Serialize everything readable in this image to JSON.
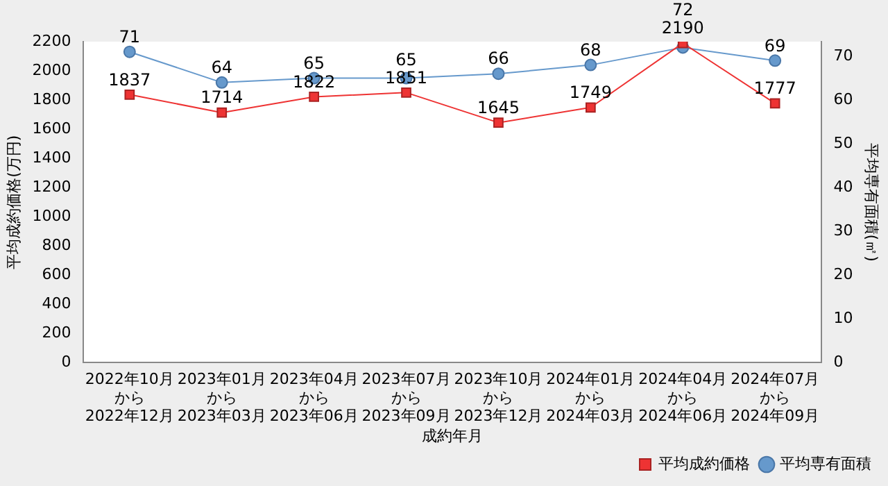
{
  "chart_data": {
    "type": "line",
    "xlabel": "成約年月",
    "ylabel": "平均成約価格(万円)",
    "y2label": "平均専有面積(㎡)",
    "categories": [
      "2022年10月から2022年12月",
      "2023年01月から2023年03月",
      "2023年04月から2023年06月",
      "2023年07月から2023年09月",
      "2023年10月から2023年12月",
      "2024年01月から2024年03月",
      "2024年04月から2024年06月",
      "2024年07月から2024年09月"
    ],
    "series": [
      {
        "name": "平均成約価格",
        "color": "#ee3333",
        "marker": "square",
        "values": [
          1837,
          1714,
          1822,
          1851,
          1645,
          1749,
          2190,
          1777
        ]
      },
      {
        "name": "平均専有面積",
        "color": "#6699cc",
        "marker": "circle",
        "axis": "y2",
        "values": [
          71,
          64,
          65,
          65,
          66,
          68,
          72,
          69
        ]
      }
    ],
    "ylim": [
      0,
      2200
    ],
    "yticks": [
      0,
      200,
      400,
      600,
      800,
      1000,
      1200,
      1400,
      1600,
      1800,
      2000,
      2200
    ],
    "y2lim": [
      0,
      73.33
    ],
    "y2ticks": [
      0,
      10,
      20,
      30,
      40,
      50,
      60,
      70
    ],
    "data_labels": true,
    "grid": false,
    "legend": "bottom right"
  }
}
